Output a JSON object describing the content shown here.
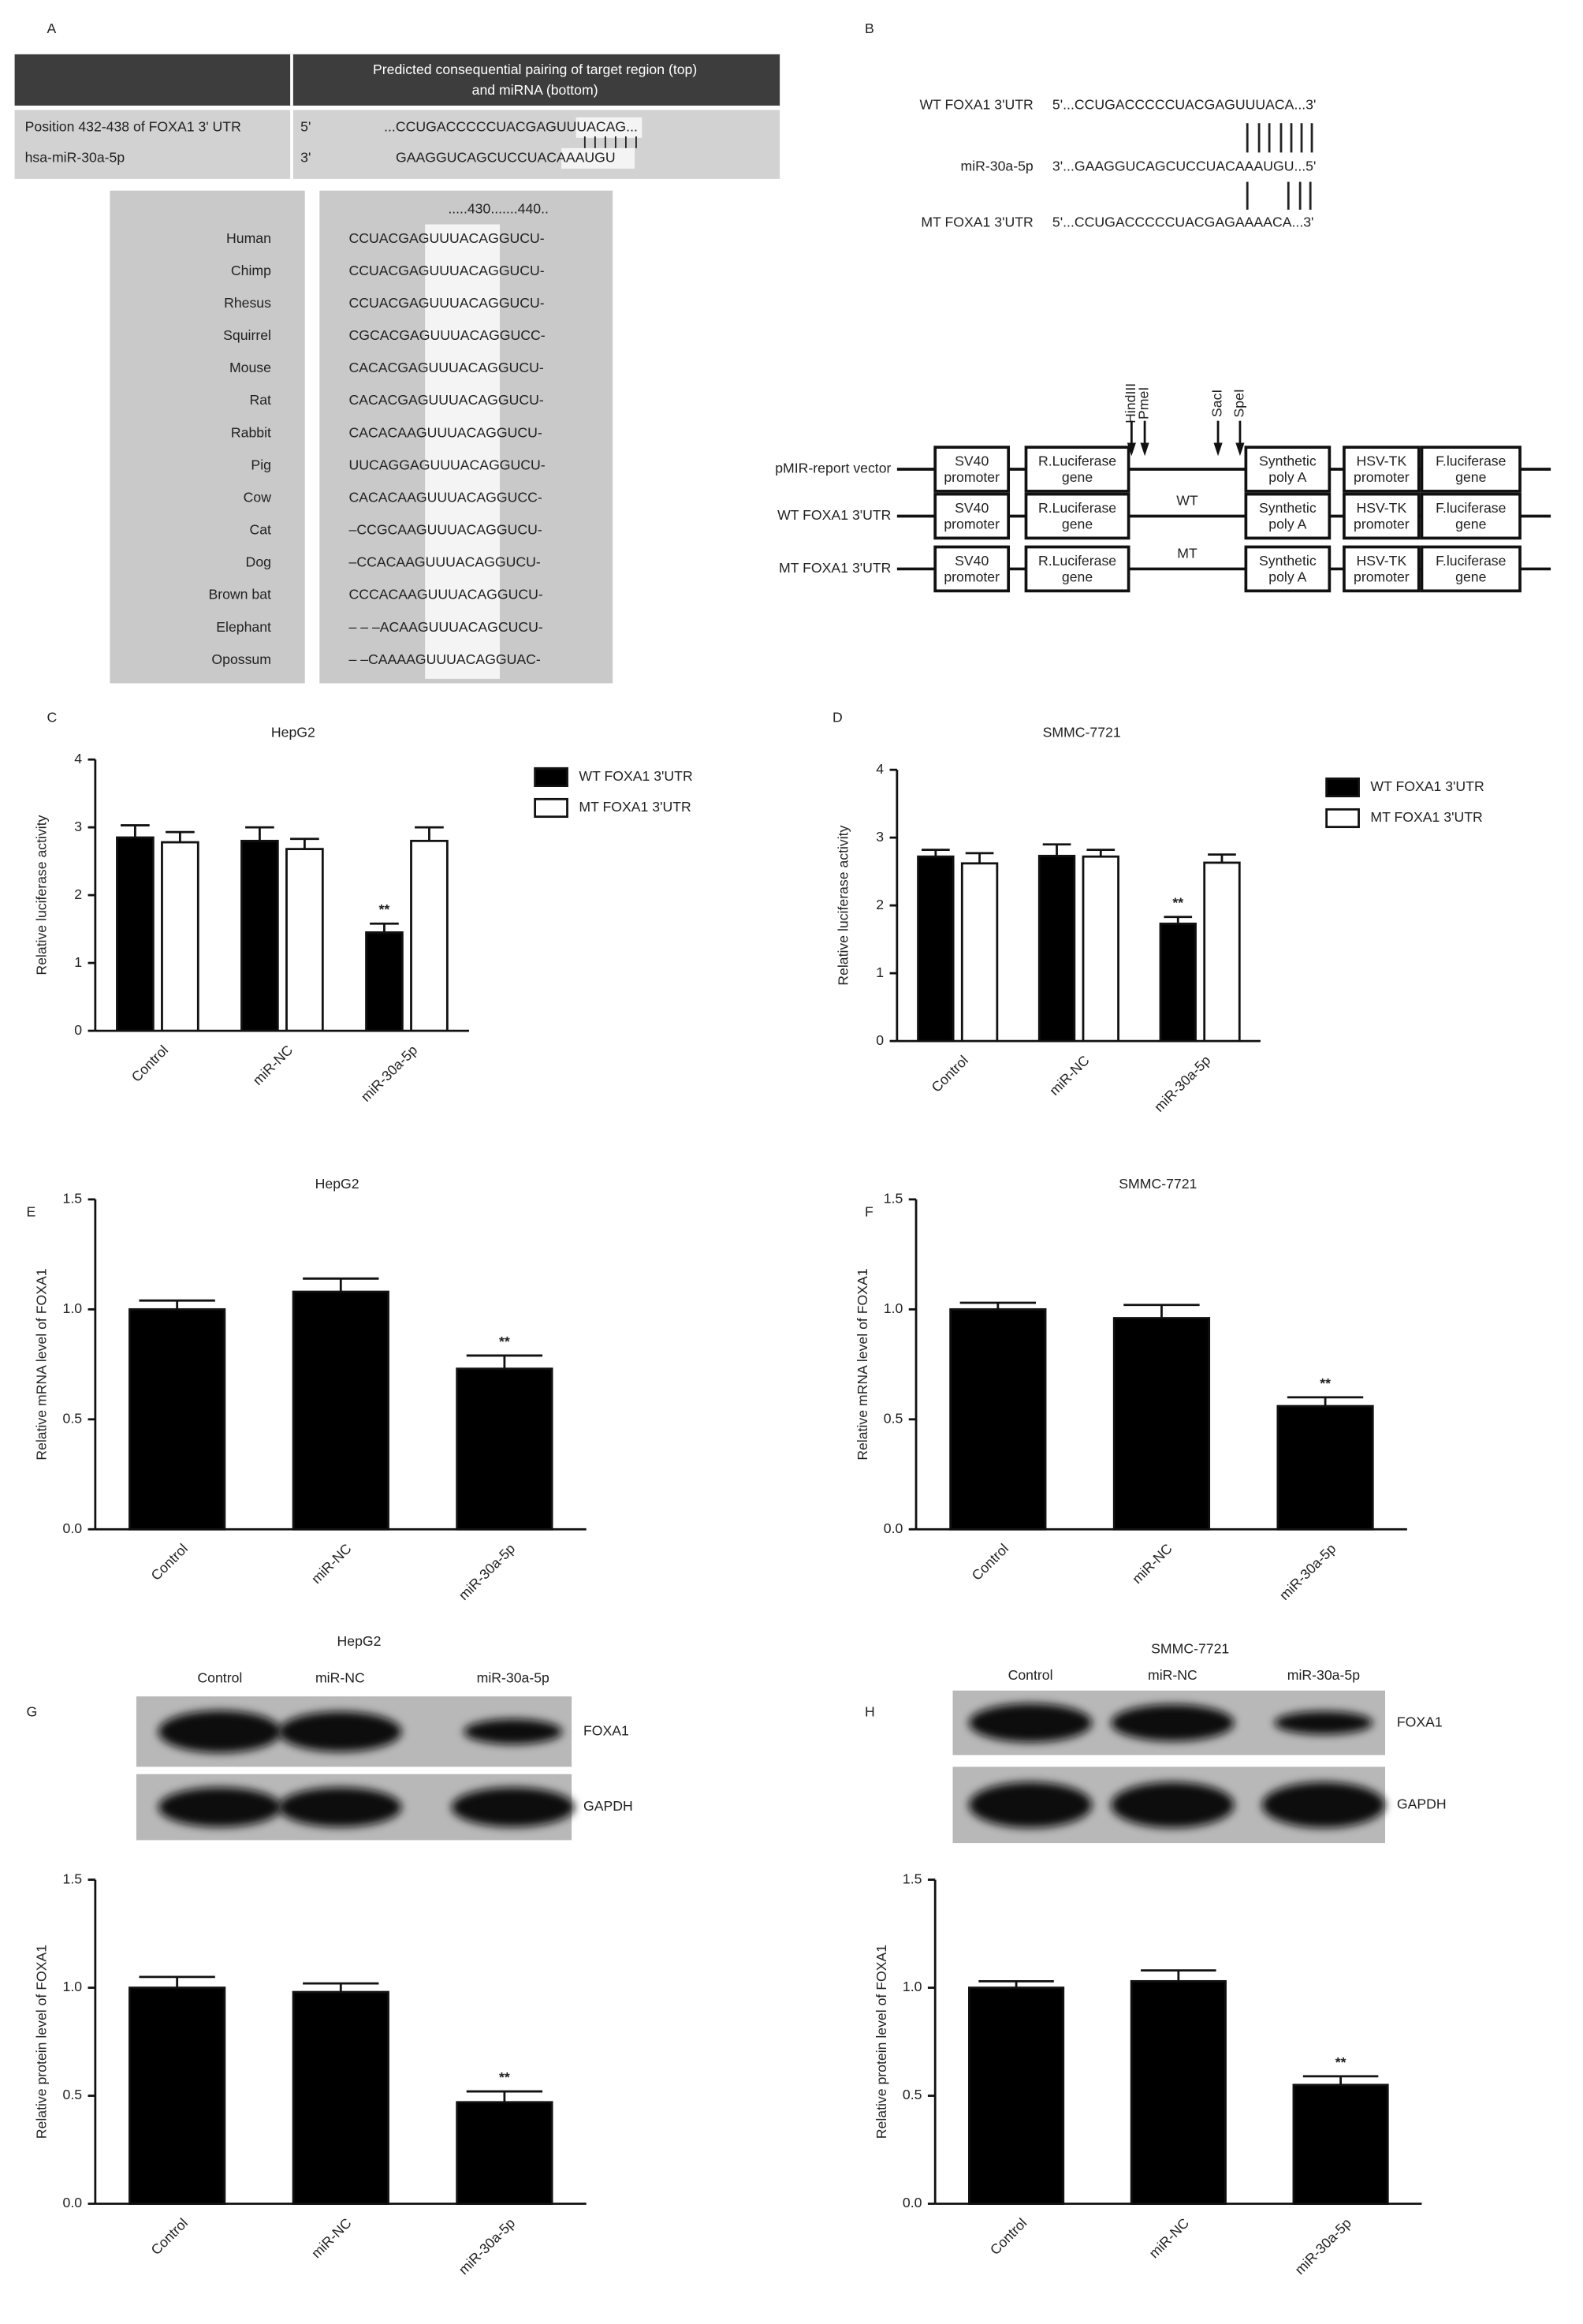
{
  "panel_a": {
    "label": "A",
    "table": {
      "header": [
        "Predicted consequential pairing of target region (top)",
        "and miRNA (bottom)"
      ],
      "rows": [
        [
          "Position 432-438 of FOXA1 3' UTR",
          "5'",
          "...CCUGACCCCCUACGAGUUUACAG..."
        ],
        [
          "hsa-miR-30a-5p",
          "3'",
          "GAAGGUCAGCUCCUACAAAUGU"
        ]
      ]
    },
    "alignment": {
      "ruler": ".....430.......440..",
      "species": [
        "Human",
        "Chimp",
        "Rhesus",
        "Squirrel",
        "Mouse",
        "Rat",
        "Rabbit",
        "Pig",
        "Cow",
        "Cat",
        "Dog",
        "Brown bat",
        "Elephant",
        "Opossum"
      ],
      "sequences": [
        "CCUACGAGUUUACAGGUCU-",
        "CCUACGAGUUUACAGGUCU-",
        "CCUACGAGUUUACAGGUCU-",
        "CGCACGAGUUUACAGGUCC-",
        "CACACGAGUUUACAGGUCU-",
        "CACACGAGUUUACAGGUCU-",
        "CACACAAGUUUACAGGUCU-",
        "UUCAGGAGUUUACAGGUCU-",
        "CACACAAGUUUACAGGUCC-",
        "–CCGCAAGUUUACAGGUCU-",
        "–CCACAAGUUUACAGGUCU-",
        "CCCACAAGUUUACAGGUCU-",
        "– – –ACAAGUUUACAGCUCU-",
        "– –CAAAAGUUUACAGGUAC-"
      ]
    }
  },
  "panel_b": {
    "label": "B",
    "pairing": [
      {
        "name": "WT FOXA1 3'UTR",
        "sequence": "5'...CCUGACCCCCUACGAGUUUACA...3'"
      },
      {
        "name": "miR-30a-5p",
        "sequence": "3'...GAAGGUCAGCUCCUACAAAUGU...5'"
      },
      {
        "name": "MT FOXA1 3'UTR",
        "sequence": "5'...CCUGACCCCCUACGAGAAAACA...3'"
      }
    ],
    "vector": {
      "sites": [
        "HindIII",
        "PmeI",
        "SacI",
        "SpeI"
      ],
      "rows": [
        "pMIR-report vector",
        "WT FOXA1 3'UTR",
        "MT FOXA1 3'UTR"
      ],
      "inserts": [
        "WT",
        "MT"
      ],
      "boxes": [
        [
          "SV40",
          "promoter"
        ],
        [
          "R.Luciferase",
          "gene"
        ],
        [
          "Synthetic",
          "poly A"
        ],
        [
          "HSV-TK",
          "promoter"
        ],
        [
          "F.luciferase",
          "gene"
        ]
      ]
    }
  },
  "chart_data": [
    {
      "type": "bar",
      "panel": "C",
      "title": "HepG2",
      "y_label": "Relative luciferase activity",
      "categories": [
        "Control",
        "miR-NC",
        "miR-30a-5p"
      ],
      "series": [
        {
          "name": "WT FOXA1 3'UTR",
          "color": "#000000",
          "values": [
            2.85,
            2.8,
            1.45
          ],
          "error": [
            0.18,
            0.2,
            0.13
          ],
          "significance": [
            null,
            null,
            "**"
          ]
        },
        {
          "name": "MT FOXA1 3'UTR",
          "color": "#ffffff",
          "values": [
            2.78,
            2.68,
            2.8
          ],
          "error": [
            0.15,
            0.15,
            0.2
          ]
        }
      ],
      "ylim": [
        0,
        4
      ],
      "yticks": [
        0,
        1,
        2,
        3,
        4
      ]
    },
    {
      "type": "bar",
      "panel": "D",
      "title": "SMMC-7721",
      "y_label": "Relative luciferase activity",
      "categories": [
        "Control",
        "miR-NC",
        "miR-30a-5p"
      ],
      "series": [
        {
          "name": "WT FOXA1 3'UTR",
          "color": "#000000",
          "values": [
            2.72,
            2.73,
            1.73
          ],
          "error": [
            0.1,
            0.17,
            0.1
          ],
          "significance": [
            null,
            null,
            "**"
          ]
        },
        {
          "name": "MT FOXA1 3'UTR",
          "color": "#ffffff",
          "values": [
            2.62,
            2.72,
            2.63
          ],
          "error": [
            0.15,
            0.1,
            0.12
          ]
        }
      ],
      "ylim": [
        0,
        4
      ],
      "yticks": [
        0,
        1,
        2,
        3,
        4
      ]
    },
    {
      "type": "bar",
      "panel": "E",
      "title": "HepG2",
      "y_label": "Relative mRNA level of FOXA1",
      "categories": [
        "Control",
        "miR-NC",
        "miR-30a-5p"
      ],
      "values": [
        1.0,
        1.08,
        0.73
      ],
      "error": [
        0.04,
        0.06,
        0.06
      ],
      "significance": [
        null,
        null,
        "**"
      ],
      "color": "#000000",
      "ylim": [
        0,
        1.5
      ],
      "yticks": [
        {
          "value": 0,
          "label": "0.0"
        },
        0.5,
        {
          "value": 1,
          "label": "1.0"
        },
        1.5
      ]
    },
    {
      "type": "bar",
      "panel": "F",
      "title": "SMMC-7721",
      "y_label": "Relative mRNA level of FOXA1",
      "categories": [
        "Control",
        "miR-NC",
        "miR-30a-5p"
      ],
      "values": [
        1.0,
        0.96,
        0.56
      ],
      "error": [
        0.03,
        0.06,
        0.04
      ],
      "significance": [
        null,
        null,
        "**"
      ],
      "color": "#000000",
      "ylim": [
        0,
        1.5
      ],
      "yticks": [
        {
          "value": 0,
          "label": "0.0"
        },
        0.5,
        {
          "value": 1,
          "label": "1.0"
        },
        1.5
      ]
    },
    {
      "type": "bar",
      "panel": "G",
      "title": "HepG2",
      "y_label": "Relative protein level of FOXA1",
      "categories": [
        "Control",
        "miR-NC",
        "miR-30a-5p"
      ],
      "values": [
        1.0,
        0.98,
        0.47
      ],
      "error": [
        0.05,
        0.04,
        0.05
      ],
      "significance": [
        null,
        null,
        "**"
      ],
      "color": "#000000",
      "ylim": [
        0,
        1.5
      ],
      "yticks": [
        {
          "value": 0,
          "label": "0.0"
        },
        0.5,
        {
          "value": 1,
          "label": "1.0"
        },
        1.5
      ],
      "blot": {
        "lanes": [
          "Control",
          "miR-NC",
          "miR-30a-5p"
        ],
        "bands": [
          "FOXA1",
          "GAPDH"
        ]
      }
    },
    {
      "type": "bar",
      "panel": "H",
      "title": "SMMC-7721",
      "y_label": "Relative protein level of FOXA1",
      "categories": [
        "Control",
        "miR-NC",
        "miR-30a-5p"
      ],
      "values": [
        1.0,
        1.03,
        0.55
      ],
      "error": [
        0.03,
        0.05,
        0.04
      ],
      "significance": [
        null,
        null,
        "**"
      ],
      "color": "#000000",
      "ylim": [
        0,
        1.5
      ],
      "yticks": [
        {
          "value": 0,
          "label": "0.0"
        },
        0.5,
        {
          "value": 1,
          "label": "1.0"
        },
        1.5
      ],
      "blot": {
        "lanes": [
          "Control",
          "miR-NC",
          "miR-30a-5p"
        ],
        "bands": [
          "FOXA1",
          "GAPDH"
        ]
      }
    }
  ]
}
